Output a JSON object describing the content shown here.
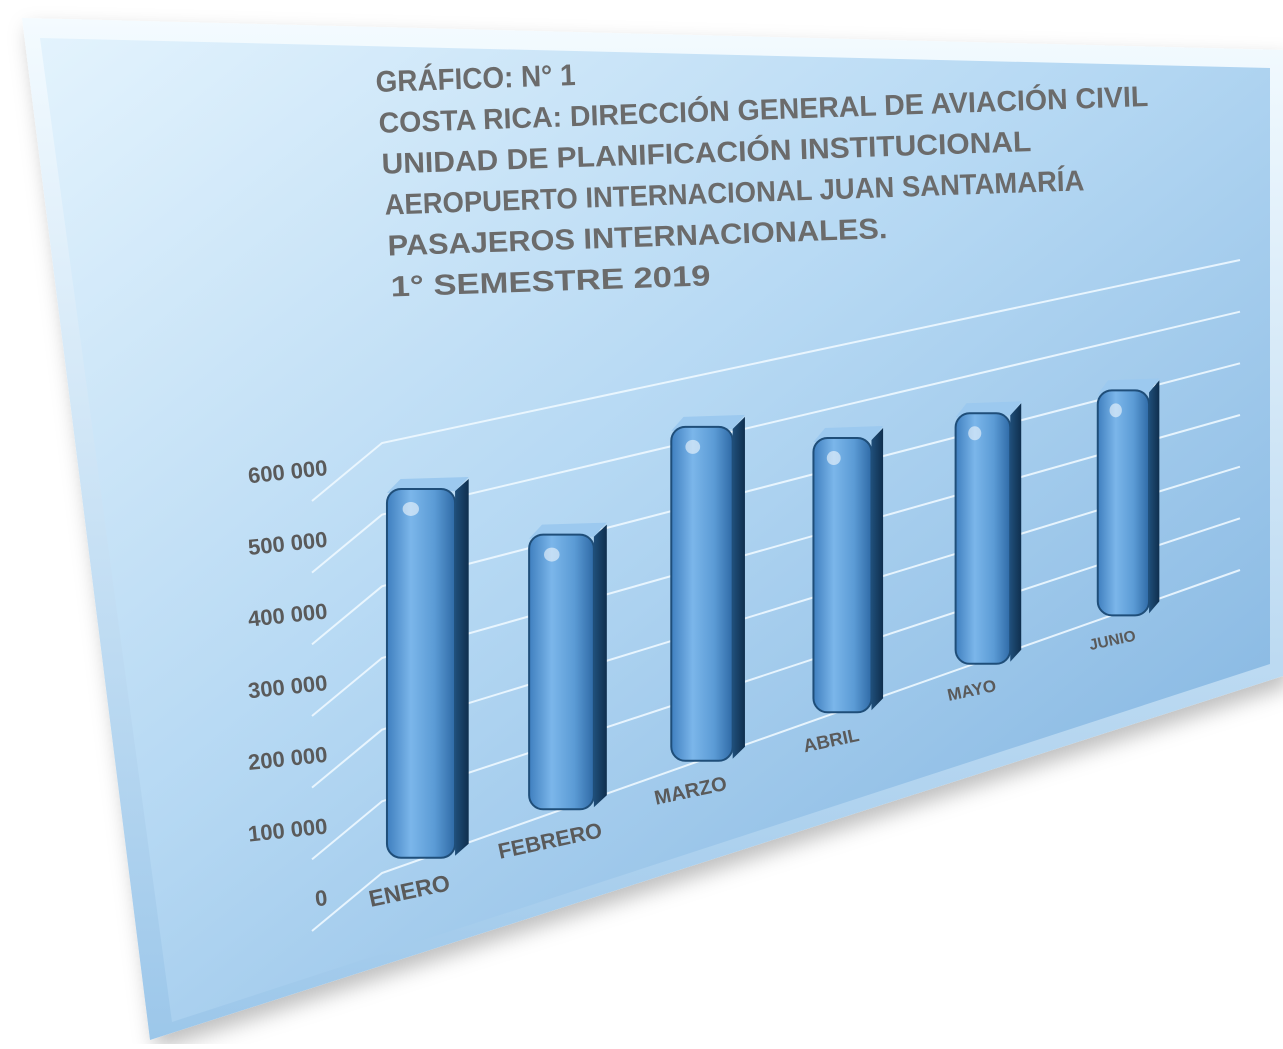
{
  "chart_data": {
    "type": "bar",
    "title_lines": [
      "GRÁFICO: N° 1",
      "COSTA RICA: DIRECCIÓN GENERAL DE AVIACIÓN CIVIL",
      "UNIDAD DE PLANIFICACIÓN INSTITUCIONAL",
      "AEROPUERTO INTERNACIONAL JUAN SANTAMARÍA",
      "PASAJEROS INTERNACIONALES.",
      "1° SEMESTRE 2019"
    ],
    "categories": [
      "ENERO",
      "FEBRERO",
      "MARZO",
      "ABRIL",
      "MAYO",
      "JUNIO"
    ],
    "values": [
      545000,
      430000,
      545000,
      475000,
      460000,
      440000
    ],
    "yticks": [
      "0",
      "100 000",
      "200 000",
      "300 000",
      "400 000",
      "500 000",
      "600 000"
    ],
    "ylim": [
      0,
      600000
    ],
    "grid": true,
    "legend": "none",
    "colors": {
      "bar": "#5b9bd5",
      "bar_dark": "#1f4e79",
      "panel_light": "#d6ecfb",
      "panel_dark": "#7fb2df",
      "title_text": "#6b6b6b",
      "tick_text": "#5a5a5a"
    }
  }
}
